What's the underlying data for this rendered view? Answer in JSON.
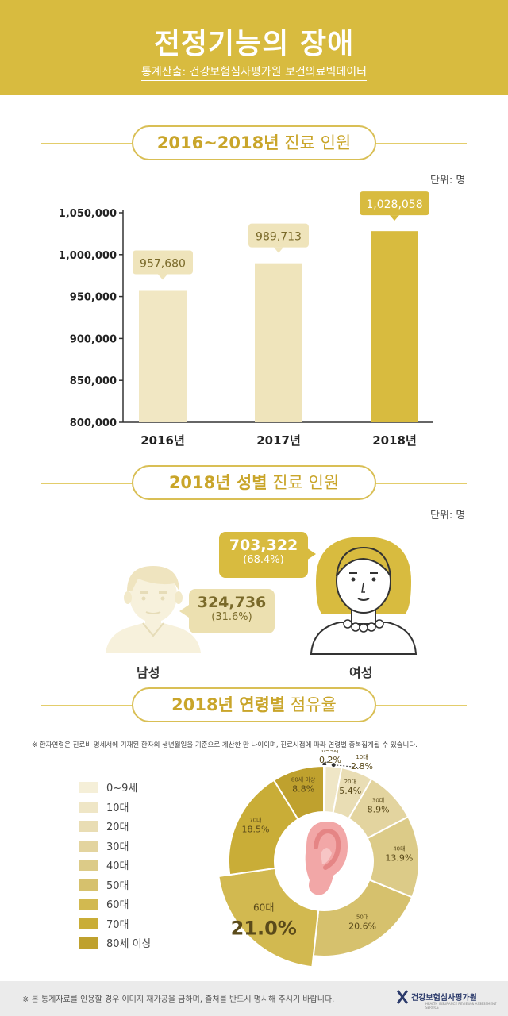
{
  "header": {
    "title": "전정기능의 장애",
    "source": "통계산출: 건강보험심사평가원 보건의료빅데이터"
  },
  "sections": {
    "s1_bold": "2016~2018년",
    "s1_thin": " 진료 인원",
    "s2_bold": "2018년 성별",
    "s2_thin": " 진료 인원",
    "s3_bold": "2018년 연령별",
    "s3_thin": " 점유율",
    "unit": "단위: 명"
  },
  "chart_data": [
    {
      "type": "bar",
      "categories": [
        "2016년",
        "2017년",
        "2018년"
      ],
      "values": [
        957680,
        989713,
        1028058
      ],
      "value_labels": [
        "957,680",
        "989,713",
        "1,028,058"
      ],
      "ylim": [
        800000,
        1050000
      ],
      "yticks": [
        800000,
        850000,
        900000,
        950000,
        1000000,
        1050000
      ],
      "ytick_labels": [
        "800,000",
        "850,000",
        "900,000",
        "950,000",
        "1,000,000",
        "1,050,000"
      ],
      "colors": [
        "#f1e7c3",
        "#efe4bb",
        "#d8bb3f"
      ]
    },
    {
      "type": "pie",
      "categories": [
        "0~9세",
        "10대",
        "20대",
        "30대",
        "40대",
        "50대",
        "60대",
        "70대",
        "80세 이상"
      ],
      "values": [
        0.2,
        2.8,
        5.4,
        8.9,
        13.9,
        20.6,
        21.0,
        18.5,
        8.8
      ],
      "value_labels": [
        "0.2%",
        "2.8%",
        "5.4%",
        "8.9%",
        "13.9%",
        "20.6%",
        "21.0%",
        "18.5%",
        "8.8%"
      ],
      "colors": [
        "#f5efd8",
        "#efe6c6",
        "#e9ddb4",
        "#e3d49f",
        "#dccb88",
        "#d6c16d",
        "#d2b950",
        "#c9ad37",
        "#bfa12e"
      ]
    }
  ],
  "gender": {
    "male_label": "남성",
    "female_label": "여성",
    "male_value": "324,736",
    "male_pct": "(31.6%)",
    "female_value": "703,322",
    "female_pct": "(68.4%)"
  },
  "age_note": "※ 환자연령은 진료비 명세서에 기재된 환자의 생년월일을 기준으로 계산한 만 나이이며, 진료시점에 따라 연령별 중복집계될 수 있습니다.",
  "footer": {
    "note": "※ 본 통계자료를 인용할 경우 이미지 재가공을 금하며, 출처를 반드시 명시해 주시기 바랍니다.",
    "logo": "건강보험심사평가원",
    "logo_sub": "HEALTH INSURANCE REVIEW & ASSESSMENT SERVICE"
  }
}
